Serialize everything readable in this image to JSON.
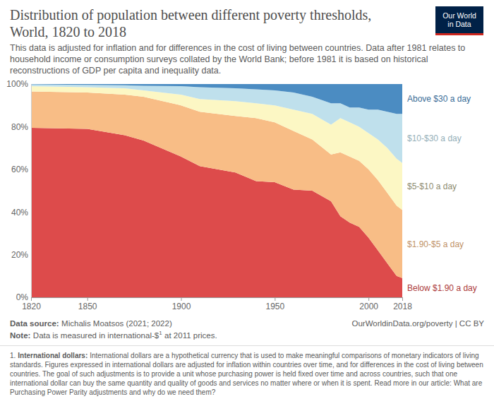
{
  "chart_data": {
    "type": "area",
    "title": "Distribution of population between different poverty thresholds, World, 1820 to 2018",
    "subtitle": "This data is adjusted for inflation and for differences in the cost of living between countries. Data after 1981 relates to household income or consumption surveys collated by the World Bank; before 1981 it is based on historical reconstructions of GDP per capita and inequality data.",
    "logo": "Our World in Data",
    "source_label": "Data source:",
    "source": "Michalis Moatsos (2021; 2022)",
    "url": "OurWorldinData.org/poverty | CC BY",
    "note_label": "Note:",
    "note_text": "Data is measured in international-$",
    "note_sup": "1",
    "note_end": "at 2011 prices.",
    "footnote_marker": "1.",
    "footnote_term": "International dollars:",
    "footnote_text": "International dollars are a hypothetical currency that is used to make meaningful comparisons of monetary indicators of living standards. Figures expressed in international dollars are adjusted for inflation within countries over time, and for differences in the cost of living between countries. The goal of such adjustments is to provide a unit whose purchasing power is held fixed over time and across countries, such that one international dollar can buy the same quantity and quality of goods and services no matter where or when it is spent. Read more in our article: What are Purchasing Power Parity adjustments and why do we need them?",
    "stacked": true,
    "grid": false,
    "legend": "right",
    "x": [
      1820,
      1850,
      1870,
      1880,
      1900,
      1910,
      1929,
      1940,
      1950,
      1960,
      1970,
      1980,
      1985,
      1990,
      1995,
      2000,
      2005,
      2010,
      2015,
      2018
    ],
    "xlim": [
      1820,
      2018
    ],
    "xticks": [
      1820,
      1850,
      1900,
      1950,
      2000,
      2018
    ],
    "ylim": [
      0,
      100
    ],
    "yticks": [
      {
        "value": 0,
        "label": "0%"
      },
      {
        "value": 20,
        "label": "20%"
      },
      {
        "value": 40,
        "label": "40%"
      },
      {
        "value": 60,
        "label": "60%"
      },
      {
        "value": 80,
        "label": "80%"
      },
      {
        "value": 100,
        "label": "100%"
      }
    ],
    "series": [
      {
        "name": "Below $1.90 a day",
        "color": "#dd4b4b",
        "values": [
          79.5,
          79,
          76,
          73.5,
          66,
          61.5,
          58.5,
          54.5,
          54,
          50.5,
          50,
          45,
          38,
          35,
          33,
          28,
          22,
          16,
          10,
          9
        ]
      },
      {
        "name": "$1.90-$5 a day",
        "color": "#f8bd86",
        "values": [
          17,
          17,
          19,
          20.5,
          24,
          25.5,
          26.5,
          29.5,
          28,
          27.5,
          24,
          22,
          30,
          31,
          31,
          32,
          33,
          33,
          33,
          32
        ]
      },
      {
        "name": "$5-$10 a day",
        "color": "#fcf7c4",
        "values": [
          2.5,
          2.5,
          3,
          3,
          5,
          6,
          7,
          7,
          8,
          10,
          12,
          14,
          16,
          16,
          16,
          17,
          19,
          21,
          22,
          22
        ]
      },
      {
        "name": "$10-$30 a day",
        "color": "#bfe0ec",
        "values": [
          0.8,
          1.1,
          1.4,
          2.2,
          4,
          5.5,
          6,
          6.5,
          7,
          8,
          8,
          10,
          7,
          7,
          9,
          11,
          14,
          17,
          21,
          23
        ]
      },
      {
        "name": "Above $30 a day",
        "color": "#4b8cc2",
        "values": [
          0.2,
          0.4,
          0.6,
          0.8,
          1,
          1.5,
          2,
          2.5,
          3,
          4,
          6,
          9,
          9,
          11,
          11,
          12,
          12,
          13,
          14,
          14
        ]
      }
    ]
  }
}
